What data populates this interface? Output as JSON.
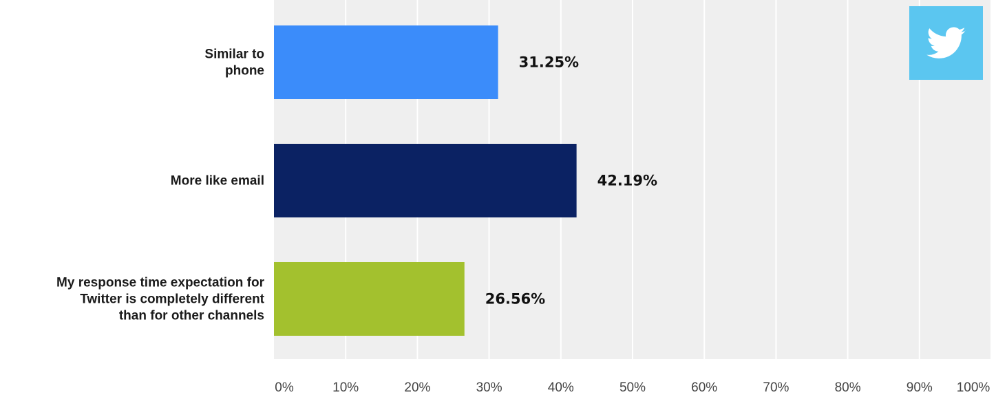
{
  "chart_data": {
    "type": "bar",
    "orientation": "horizontal",
    "categories": [
      [
        "Similar to",
        "phone"
      ],
      [
        "More like email"
      ],
      [
        "My response time expectation for",
        "Twitter is completely different",
        "than for other channels"
      ]
    ],
    "values": [
      31.25,
      42.19,
      26.56
    ],
    "value_labels": [
      "31.25%",
      "42.19%",
      "26.56%"
    ],
    "colors": [
      "#3b8cfa",
      "#0b2263",
      "#a3c12e"
    ],
    "xlim": [
      0,
      100
    ],
    "xticks": [
      0,
      10,
      20,
      30,
      40,
      50,
      60,
      70,
      80,
      90,
      100
    ],
    "xtick_labels": [
      "0%",
      "10%",
      "20%",
      "30%",
      "40%",
      "50%",
      "60%",
      "70%",
      "80%",
      "90%",
      "100%"
    ],
    "title": "",
    "xlabel": "",
    "ylabel": "",
    "grid": true,
    "legend": "none"
  },
  "badge": {
    "icon": "twitter-bird-icon",
    "color": "#5bc6f0"
  }
}
